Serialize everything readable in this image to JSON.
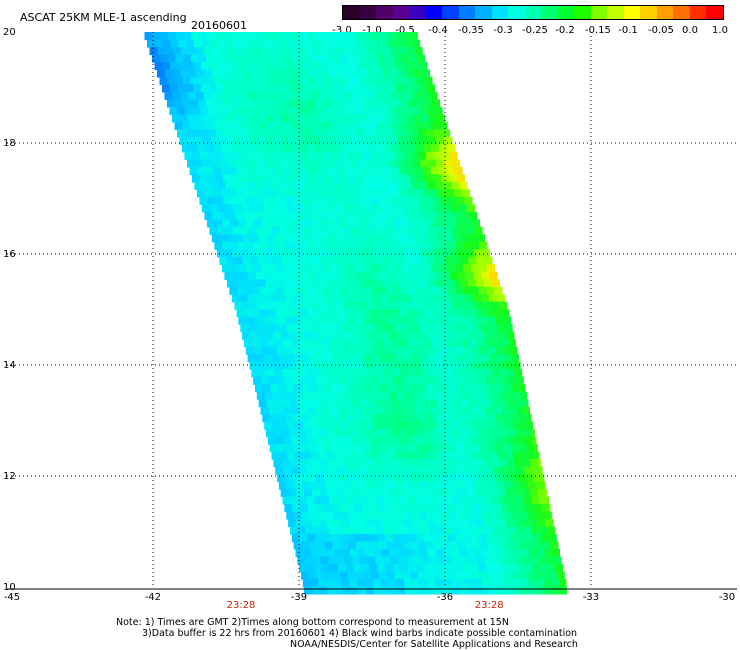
{
  "header": {
    "title": "ASCAT 25KM MLE-1 ascending",
    "date": "20160601"
  },
  "colorbar": {
    "colors": [
      "#2a0028",
      "#380040",
      "#500068",
      "#5a0090",
      "#3a00c0",
      "#0000ff",
      "#0040ff",
      "#0080ff",
      "#00b0ff",
      "#00e0ff",
      "#00ffe0",
      "#00ffb0",
      "#00ff70",
      "#00ff30",
      "#20ff00",
      "#80ff00",
      "#c0ff00",
      "#ffff00",
      "#ffd000",
      "#ffa000",
      "#ff7000",
      "#ff3000",
      "#ff0000"
    ],
    "tick_labels": [
      "-3.0",
      "-1.0",
      "-0.5",
      "-0.4",
      "-0.35",
      "-0.3",
      "-0.25",
      "-0.2",
      "-0.15",
      "-0.1",
      "-0.05",
      "0.0",
      "1.0"
    ]
  },
  "chart_data": {
    "type": "heatmap",
    "title": "ASCAT 25KM MLE-1 ascending",
    "xlim": [
      -45,
      -30
    ],
    "ylim": [
      10,
      20
    ],
    "grid": true,
    "x_ticks": [
      "-45",
      "-42",
      "-39",
      "-36",
      "-33",
      "-30"
    ],
    "y_ticks": [
      "20",
      "18",
      "16",
      "14",
      "12",
      "10"
    ],
    "time_labels": [
      {
        "x": -40.2,
        "label": "23:28"
      },
      {
        "x": -35.1,
        "label": "23:28"
      }
    ],
    "swath": {
      "left_edge": [
        [
          -42.2,
          20.0
        ],
        [
          -40.3,
          15.0
        ],
        [
          -38.9,
          10.0
        ]
      ],
      "right_edge": [
        [
          -36.6,
          20.0
        ],
        [
          -34.7,
          15.0
        ],
        [
          -33.5,
          10.0
        ]
      ],
      "value_range": [
        -0.4,
        -0.05
      ],
      "description": "Mostly -0.3 (cyan) with -0.2 (green) bands; eastern edge -0.15 to -0.05 (yellow/orange) near 17.5N and 15.5N; western edge -0.35 to -0.4 (blue)"
    }
  },
  "notes": {
    "line1": "Note: 1) Times are GMT 2)Times along bottom correspond to measurement at 15N",
    "line2": "3)Data buffer is 22 hrs from 20160601 4) Black wind barbs indicate possible contamination",
    "line3": "NOAA/NESDIS/Center for Satellite Applications and Research"
  }
}
